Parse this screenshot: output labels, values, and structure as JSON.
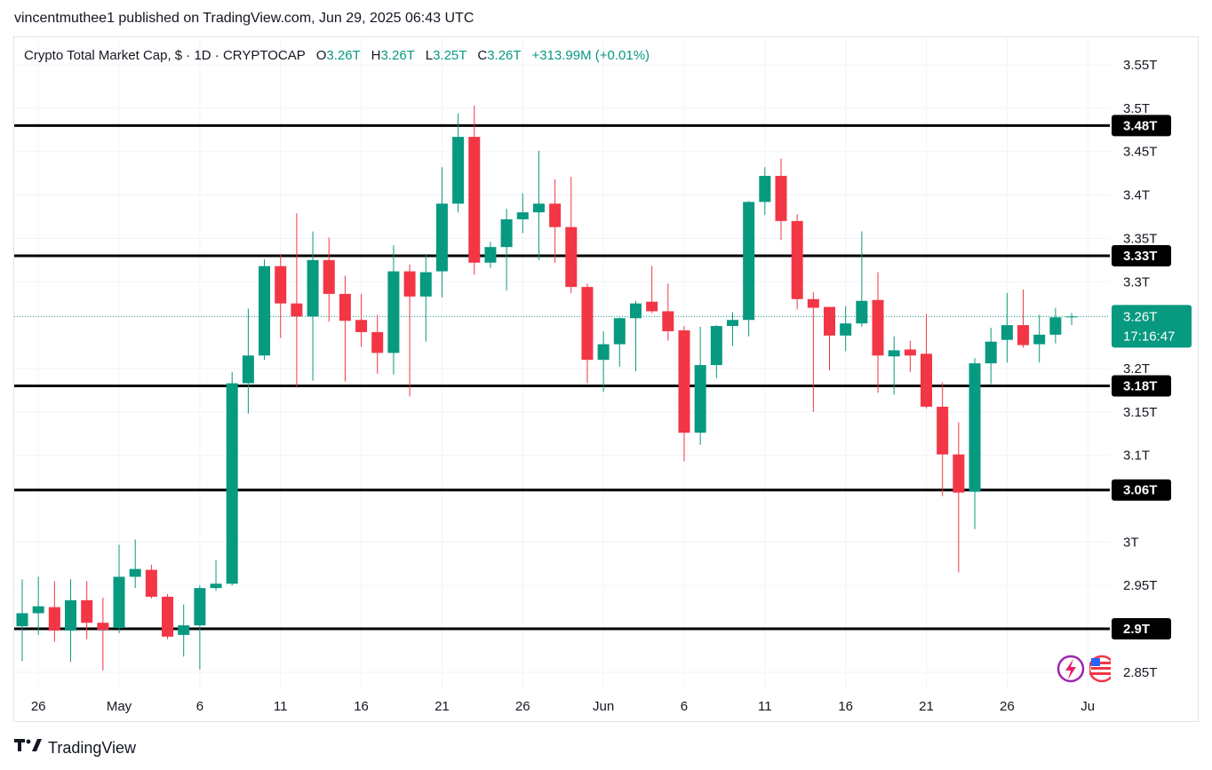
{
  "header": {
    "publisher_line": "vincentmuthee1 published on TradingView.com, Jun 29, 2025 06:43 UTC"
  },
  "legend": {
    "symbol": "Crypto Total Market Cap, $ · 1D · CRYPTOCAP",
    "o_label": "O",
    "o_value": "3.26T",
    "h_label": "H",
    "h_value": "3.26T",
    "l_label": "L",
    "l_value": "3.25T",
    "c_label": "C",
    "c_value": "3.26T",
    "change": "+313.99M (+0.01%)"
  },
  "brand": {
    "name": "TradingView",
    "logo": "tradingview-logo-icon"
  },
  "colors": {
    "up": "#089981",
    "down": "#f23645",
    "level": "#000000",
    "price_badge": "#089981"
  },
  "icons": [
    "lightning-icon",
    "us-flag-icon"
  ],
  "chart_data": {
    "type": "candlestick",
    "y_unit": "T",
    "ylim": [
      2.83,
      3.58
    ],
    "y_ticks": [
      {
        "value": 2.85,
        "label": "2.85T"
      },
      {
        "value": 2.95,
        "label": "2.95T"
      },
      {
        "value": 3.0,
        "label": "3T"
      },
      {
        "value": 3.1,
        "label": "3.1T"
      },
      {
        "value": 3.15,
        "label": "3.15T"
      },
      {
        "value": 3.2,
        "label": "3.2T"
      },
      {
        "value": 3.3,
        "label": "3.3T"
      },
      {
        "value": 3.35,
        "label": "3.35T"
      },
      {
        "value": 3.4,
        "label": "3.4T"
      },
      {
        "value": 3.45,
        "label": "3.45T"
      },
      {
        "value": 3.5,
        "label": "3.5T"
      },
      {
        "value": 3.55,
        "label": "3.55T"
      }
    ],
    "x_ticks": [
      {
        "index": 1,
        "label": "26"
      },
      {
        "index": 6,
        "label": "May"
      },
      {
        "index": 11,
        "label": "6"
      },
      {
        "index": 16,
        "label": "11"
      },
      {
        "index": 21,
        "label": "16"
      },
      {
        "index": 26,
        "label": "21"
      },
      {
        "index": 31,
        "label": "26"
      },
      {
        "index": 36,
        "label": "Jun"
      },
      {
        "index": 41,
        "label": "6"
      },
      {
        "index": 46,
        "label": "11"
      },
      {
        "index": 51,
        "label": "16"
      },
      {
        "index": 56,
        "label": "21"
      },
      {
        "index": 61,
        "label": "26"
      },
      {
        "index": 66,
        "label": "Ju"
      }
    ],
    "levels": [
      {
        "value": 3.48,
        "label": "3.48T"
      },
      {
        "value": 3.33,
        "label": "3.33T"
      },
      {
        "value": 3.18,
        "label": "3.18T"
      },
      {
        "value": 3.06,
        "label": "3.06T"
      },
      {
        "value": 2.9,
        "label": "2.9T"
      }
    ],
    "current_price": {
      "value": 3.26,
      "label": "3.26T",
      "countdown": "17:16:47"
    },
    "candles": [
      {
        "o": 2.903,
        "h": 2.957,
        "l": 2.863,
        "c": 2.918
      },
      {
        "o": 2.918,
        "h": 2.96,
        "l": 2.893,
        "c": 2.926
      },
      {
        "o": 2.925,
        "h": 2.955,
        "l": 2.885,
        "c": 2.898
      },
      {
        "o": 2.898,
        "h": 2.957,
        "l": 2.862,
        "c": 2.933
      },
      {
        "o": 2.933,
        "h": 2.955,
        "l": 2.888,
        "c": 2.907
      },
      {
        "o": 2.907,
        "h": 2.936,
        "l": 2.852,
        "c": 2.899
      },
      {
        "o": 2.901,
        "h": 2.997,
        "l": 2.895,
        "c": 2.96
      },
      {
        "o": 2.96,
        "h": 3.003,
        "l": 2.947,
        "c": 2.969
      },
      {
        "o": 2.968,
        "h": 2.974,
        "l": 2.935,
        "c": 2.937
      },
      {
        "o": 2.937,
        "h": 2.94,
        "l": 2.888,
        "c": 2.891
      },
      {
        "o": 2.893,
        "h": 2.928,
        "l": 2.868,
        "c": 2.904
      },
      {
        "o": 2.904,
        "h": 2.95,
        "l": 2.853,
        "c": 2.947
      },
      {
        "o": 2.947,
        "h": 2.979,
        "l": 2.944,
        "c": 2.952
      },
      {
        "o": 2.952,
        "h": 3.196,
        "l": 2.95,
        "c": 3.183
      },
      {
        "o": 3.183,
        "h": 3.269,
        "l": 3.148,
        "c": 3.215
      },
      {
        "o": 3.215,
        "h": 3.326,
        "l": 3.21,
        "c": 3.318
      },
      {
        "o": 3.318,
        "h": 3.332,
        "l": 3.235,
        "c": 3.275
      },
      {
        "o": 3.275,
        "h": 3.379,
        "l": 3.178,
        "c": 3.26
      },
      {
        "o": 3.26,
        "h": 3.358,
        "l": 3.186,
        "c": 3.325
      },
      {
        "o": 3.325,
        "h": 3.351,
        "l": 3.254,
        "c": 3.286
      },
      {
        "o": 3.286,
        "h": 3.307,
        "l": 3.185,
        "c": 3.255
      },
      {
        "o": 3.256,
        "h": 3.286,
        "l": 3.225,
        "c": 3.242
      },
      {
        "o": 3.242,
        "h": 3.262,
        "l": 3.194,
        "c": 3.218
      },
      {
        "o": 3.218,
        "h": 3.342,
        "l": 3.193,
        "c": 3.312
      },
      {
        "o": 3.312,
        "h": 3.32,
        "l": 3.168,
        "c": 3.283
      },
      {
        "o": 3.283,
        "h": 3.332,
        "l": 3.231,
        "c": 3.311
      },
      {
        "o": 3.312,
        "h": 3.432,
        "l": 3.282,
        "c": 3.39
      },
      {
        "o": 3.39,
        "h": 3.494,
        "l": 3.38,
        "c": 3.467
      },
      {
        "o": 3.467,
        "h": 3.503,
        "l": 3.308,
        "c": 3.322
      },
      {
        "o": 3.322,
        "h": 3.346,
        "l": 3.316,
        "c": 3.34
      },
      {
        "o": 3.34,
        "h": 3.384,
        "l": 3.29,
        "c": 3.372
      },
      {
        "o": 3.372,
        "h": 3.402,
        "l": 3.356,
        "c": 3.38
      },
      {
        "o": 3.38,
        "h": 3.451,
        "l": 3.325,
        "c": 3.39
      },
      {
        "o": 3.39,
        "h": 3.418,
        "l": 3.322,
        "c": 3.363
      },
      {
        "o": 3.363,
        "h": 3.421,
        "l": 3.287,
        "c": 3.294
      },
      {
        "o": 3.294,
        "h": 3.298,
        "l": 3.183,
        "c": 3.21
      },
      {
        "o": 3.21,
        "h": 3.243,
        "l": 3.173,
        "c": 3.228
      },
      {
        "o": 3.228,
        "h": 3.259,
        "l": 3.202,
        "c": 3.258
      },
      {
        "o": 3.258,
        "h": 3.278,
        "l": 3.197,
        "c": 3.275
      },
      {
        "o": 3.277,
        "h": 3.318,
        "l": 3.264,
        "c": 3.266
      },
      {
        "o": 3.266,
        "h": 3.298,
        "l": 3.232,
        "c": 3.243
      },
      {
        "o": 3.244,
        "h": 3.249,
        "l": 3.093,
        "c": 3.126
      },
      {
        "o": 3.126,
        "h": 3.248,
        "l": 3.112,
        "c": 3.204
      },
      {
        "o": 3.204,
        "h": 3.25,
        "l": 3.189,
        "c": 3.249
      },
      {
        "o": 3.249,
        "h": 3.265,
        "l": 3.226,
        "c": 3.256
      },
      {
        "o": 3.256,
        "h": 3.393,
        "l": 3.237,
        "c": 3.392
      },
      {
        "o": 3.392,
        "h": 3.432,
        "l": 3.377,
        "c": 3.422
      },
      {
        "o": 3.422,
        "h": 3.442,
        "l": 3.348,
        "c": 3.37
      },
      {
        "o": 3.37,
        "h": 3.378,
        "l": 3.268,
        "c": 3.28
      },
      {
        "o": 3.28,
        "h": 3.288,
        "l": 3.15,
        "c": 3.27
      },
      {
        "o": 3.271,
        "h": 3.267,
        "l": 3.198,
        "c": 3.238
      },
      {
        "o": 3.238,
        "h": 3.272,
        "l": 3.22,
        "c": 3.252
      },
      {
        "o": 3.252,
        "h": 3.358,
        "l": 3.248,
        "c": 3.278
      },
      {
        "o": 3.279,
        "h": 3.311,
        "l": 3.172,
        "c": 3.215
      },
      {
        "o": 3.214,
        "h": 3.237,
        "l": 3.17,
        "c": 3.221
      },
      {
        "o": 3.222,
        "h": 3.232,
        "l": 3.196,
        "c": 3.215
      },
      {
        "o": 3.217,
        "h": 3.263,
        "l": 3.154,
        "c": 3.156
      },
      {
        "o": 3.156,
        "h": 3.184,
        "l": 3.053,
        "c": 3.101
      },
      {
        "o": 3.101,
        "h": 3.138,
        "l": 2.965,
        "c": 3.057
      },
      {
        "o": 3.058,
        "h": 3.212,
        "l": 3.015,
        "c": 3.206
      },
      {
        "o": 3.206,
        "h": 3.247,
        "l": 3.182,
        "c": 3.231
      },
      {
        "o": 3.233,
        "h": 3.287,
        "l": 3.207,
        "c": 3.25
      },
      {
        "o": 3.25,
        "h": 3.291,
        "l": 3.224,
        "c": 3.227
      },
      {
        "o": 3.228,
        "h": 3.262,
        "l": 3.207,
        "c": 3.239
      },
      {
        "o": 3.239,
        "h": 3.27,
        "l": 3.229,
        "c": 3.259
      },
      {
        "o": 3.259,
        "h": 3.264,
        "l": 3.25,
        "c": 3.26
      }
    ]
  }
}
